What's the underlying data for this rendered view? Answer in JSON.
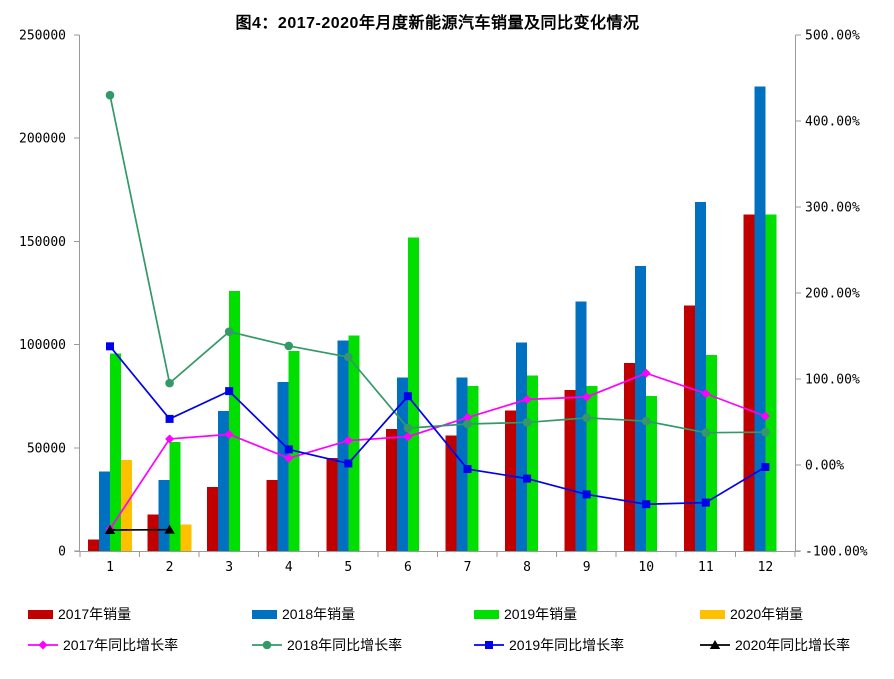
{
  "chart_data": {
    "type": "combo-bar-line",
    "title": "图4：2017-2020年月度新能源汽车销量及同比变化情况",
    "categories": [
      "1",
      "2",
      "3",
      "4",
      "5",
      "6",
      "7",
      "8",
      "9",
      "10",
      "11",
      "12"
    ],
    "left_axis": {
      "min": 0,
      "max": 250000,
      "tick_labels": [
        "0",
        "50000",
        "100000",
        "150000",
        "200000",
        "250000"
      ]
    },
    "right_axis": {
      "min": -100,
      "max": 500,
      "tick_labels": [
        "-100.00%",
        "0.00%",
        "100.00%",
        "200.00%",
        "300.00%",
        "400.00%",
        "500.00%"
      ]
    },
    "grid": false,
    "legend_position": "bottom",
    "bar_series": [
      {
        "key": "sales-2017",
        "name": "2017年销量",
        "color": "#C00000",
        "values": [
          5682,
          17596,
          31120,
          34361,
          45000,
          59000,
          56000,
          68000,
          78000,
          91000,
          119000,
          163000
        ]
      },
      {
        "key": "sales-2018",
        "name": "2018年销量",
        "color": "#0070C0",
        "values": [
          38470,
          34420,
          67778,
          81904,
          102000,
          84000,
          84000,
          101000,
          121000,
          138000,
          169000,
          225000
        ]
      },
      {
        "key": "sales-2019",
        "name": "2019年销量",
        "color": "#00DF00",
        "values": [
          95700,
          52900,
          126000,
          97000,
          104400,
          152000,
          80000,
          85000,
          80000,
          75000,
          95000,
          163000
        ]
      },
      {
        "key": "sales-2020",
        "name": "2020年销量",
        "color": "#FFC000",
        "values": [
          44000,
          12908,
          null,
          null,
          null,
          null,
          null,
          null,
          null,
          null,
          null,
          null
        ]
      }
    ],
    "line_series": [
      {
        "key": "growth-2017",
        "name": "2017年同比增长率",
        "color": "#FF00FF",
        "marker": "diamond",
        "values": [
          -74.4,
          30.3,
          35.6,
          7.9,
          28.4,
          33.0,
          55.2,
          76.3,
          79.1,
          106.7,
          83.0,
          56.8
        ]
      },
      {
        "key": "growth-2018",
        "name": "2018年同比增长率",
        "color": "#339966",
        "marker": "circle",
        "values": [
          430.0,
          95.2,
          155.0,
          138.4,
          125.6,
          42.9,
          47.7,
          49.5,
          54.8,
          51.0,
          37.6,
          38.2
        ]
      },
      {
        "key": "growth-2019",
        "name": "2019年同比增长率",
        "color": "#0000EE",
        "marker": "square",
        "values": [
          138.0,
          53.6,
          85.9,
          18.1,
          1.8,
          80.0,
          -4.7,
          -15.8,
          -34.2,
          -45.6,
          -43.7,
          -2.3
        ]
      },
      {
        "key": "growth-2020",
        "name": "2020年同比增长率",
        "color": "#000000",
        "marker": "triangle",
        "values": [
          -75.6,
          -75.2,
          null,
          null,
          null,
          null,
          null,
          null,
          null,
          null,
          null,
          null
        ]
      }
    ]
  }
}
